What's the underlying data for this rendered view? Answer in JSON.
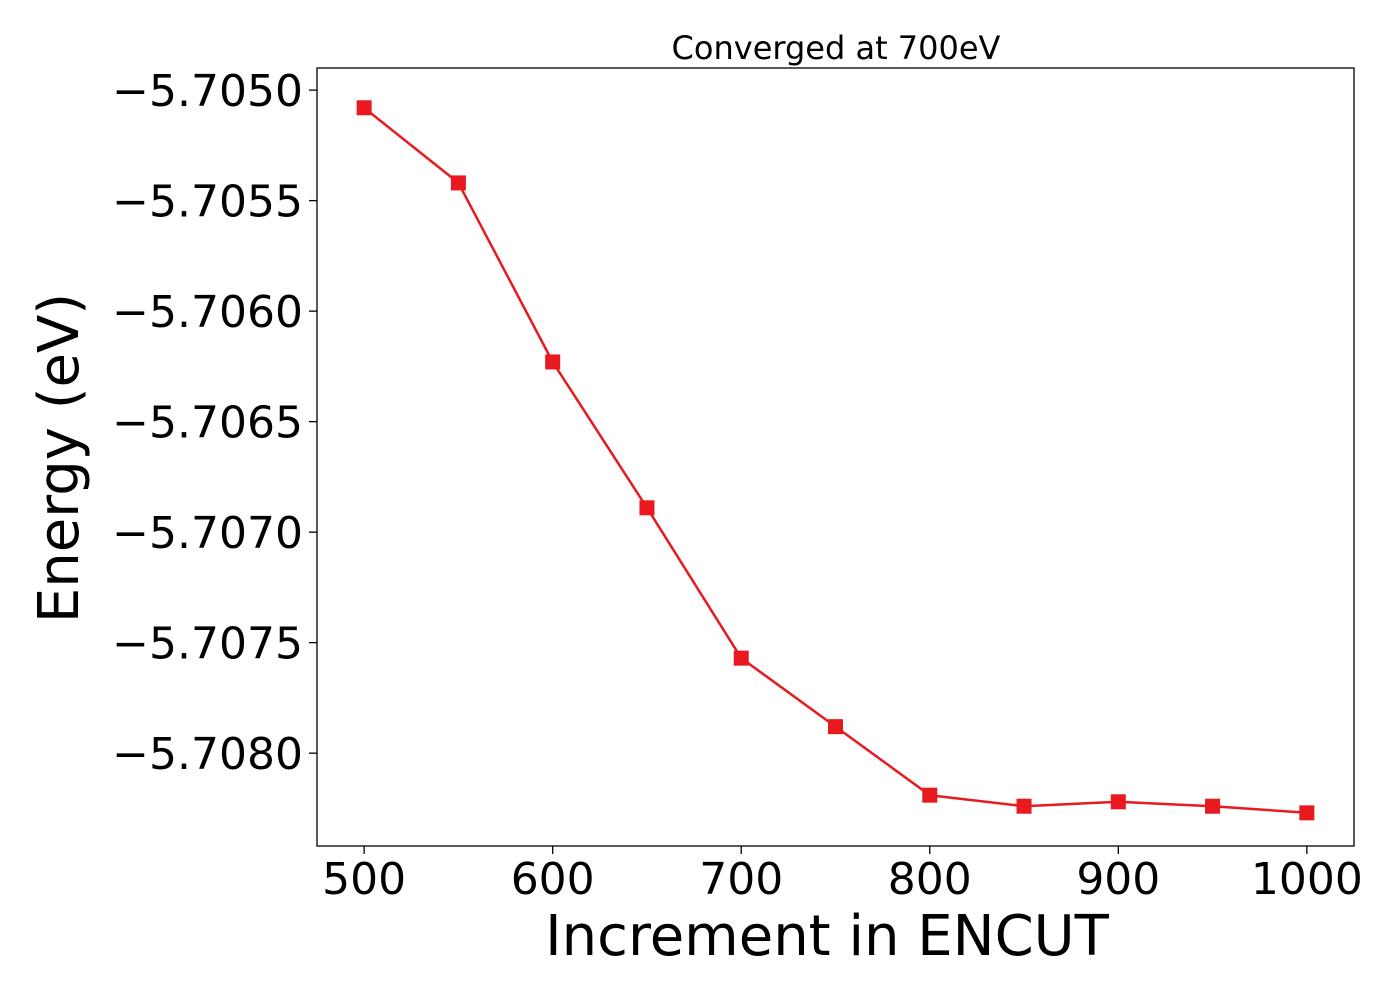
{
  "chart_data": {
    "type": "line",
    "title": "Converged at 700eV",
    "xlabel": "Increment in ENCUT",
    "ylabel": "Energy (eV)",
    "xlim": [
      475,
      1025
    ],
    "ylim": [
      -5.70842,
      -5.7049
    ],
    "x_ticks": [
      500,
      600,
      700,
      800,
      900,
      1000
    ],
    "x_tick_labels": [
      "500",
      "600",
      "700",
      "800",
      "900",
      "1000"
    ],
    "y_ticks": [
      -5.705,
      -5.7055,
      -5.706,
      -5.7065,
      -5.707,
      -5.7075,
      -5.708
    ],
    "y_tick_labels": [
      "−5.7050",
      "−5.7055",
      "−5.7060",
      "−5.7065",
      "−5.7070",
      "−5.7075",
      "−5.7080"
    ],
    "grid": false,
    "series": [
      {
        "color": "#e8191f",
        "marker": "square",
        "x": [
          500,
          550,
          600,
          650,
          700,
          750,
          800,
          850,
          900,
          950,
          1000
        ],
        "y": [
          -5.70508,
          -5.70542,
          -5.70623,
          -5.70689,
          -5.70757,
          -5.70788,
          -5.70819,
          -5.70824,
          -5.70822,
          -5.70824,
          -5.70827
        ]
      }
    ]
  }
}
